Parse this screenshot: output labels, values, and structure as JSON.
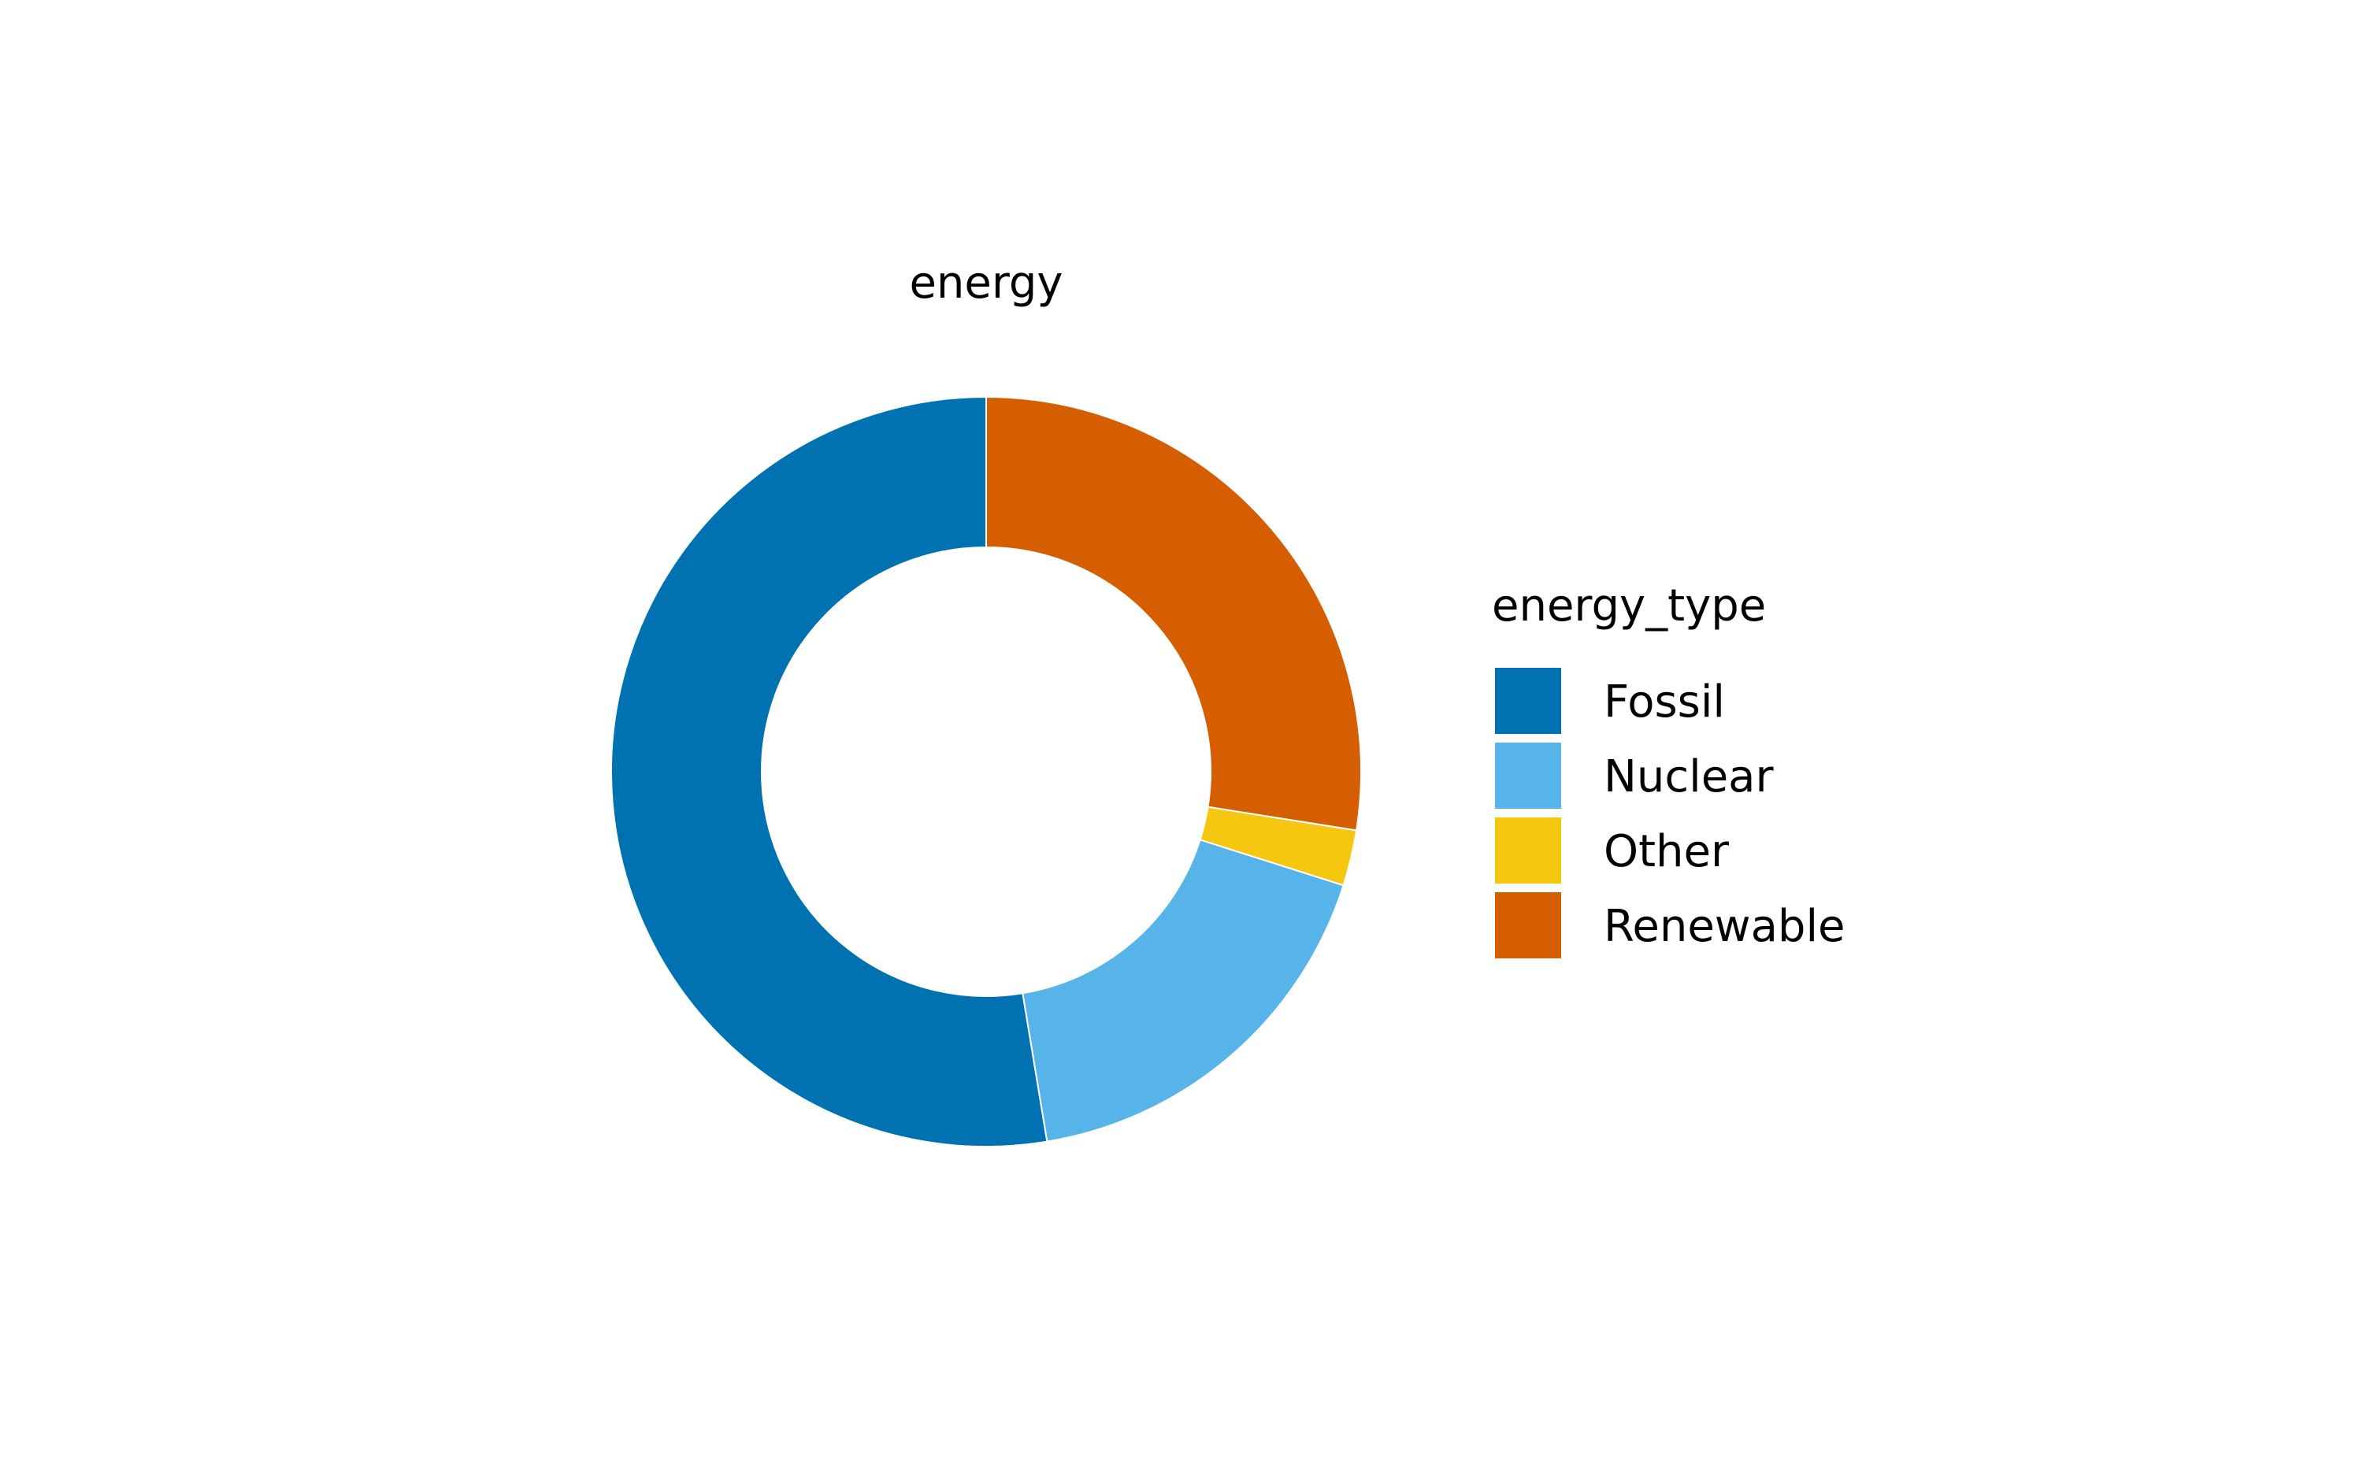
{
  "chart_data": {
    "type": "pie",
    "style": "donut",
    "title": "energy",
    "legend_title": "energy_type",
    "legend_position": "right",
    "categories": [
      "Fossil",
      "Nuclear",
      "Other",
      "Renewable"
    ],
    "values": [
      52.6,
      17.5,
      2.4,
      27.5
    ],
    "colors": [
      "#0072B2",
      "#56B4E9",
      "#F5C710",
      "#D55E00"
    ],
    "direction": "counterclockwise",
    "start": "top"
  }
}
